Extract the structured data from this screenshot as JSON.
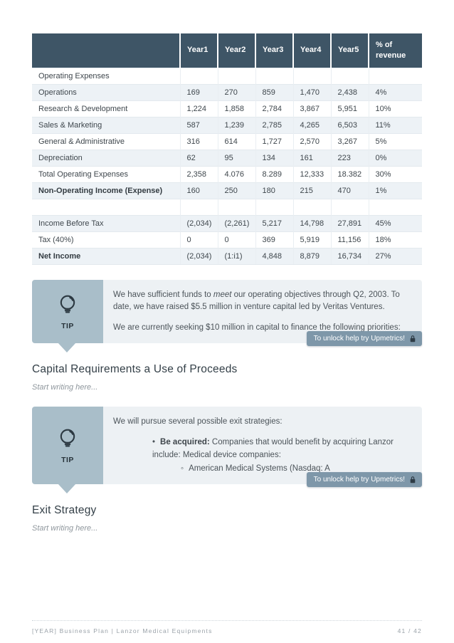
{
  "table": {
    "columns": [
      "",
      "Year1",
      "Year2",
      "Year3",
      "Year4",
      "Year5",
      "% of revenue"
    ],
    "rows": [
      {
        "label": "Operating Expenses",
        "bold": false,
        "values": [
          "",
          "",
          "",
          "",
          "",
          ""
        ]
      },
      {
        "label": "Operations",
        "bold": false,
        "values": [
          "169",
          "270",
          "859",
          "1,470",
          "2,438",
          "4%"
        ]
      },
      {
        "label": "Research & Development",
        "bold": false,
        "values": [
          "1,224",
          "1,858",
          "2,784",
          "3,867",
          "5,951",
          "10%"
        ]
      },
      {
        "label": "Sales & Marketing",
        "bold": false,
        "values": [
          "587",
          "1,239",
          "2,785",
          "4,265",
          "6,503",
          "11%"
        ]
      },
      {
        "label": "General & Administrative",
        "bold": false,
        "values": [
          "316",
          "614",
          "1,727",
          "2,570",
          "3,267",
          "5%"
        ]
      },
      {
        "label": "Depreciation",
        "bold": false,
        "values": [
          "62",
          "95",
          "134",
          "161",
          "223",
          "0%"
        ]
      },
      {
        "label": "Total Operating Expenses",
        "bold": false,
        "values": [
          "2,358",
          "4.076",
          "8.289",
          "12,333",
          "18.382",
          "30%"
        ]
      },
      {
        "label": "Non-Operating Income (Expense)",
        "bold": true,
        "values": [
          "160",
          "250",
          "180",
          "215",
          "470",
          "1%"
        ]
      },
      {
        "label": "",
        "bold": false,
        "values": [
          "",
          "",
          "",
          "",
          "",
          ""
        ]
      },
      {
        "label": "Income Before Tax",
        "bold": false,
        "values": [
          "(2,034)",
          "(2,261)",
          "5,217",
          "14,798",
          "27,891",
          "45%"
        ]
      },
      {
        "label": "Tax (40%)",
        "bold": false,
        "values": [
          "0",
          "0",
          "369",
          "5,919",
          "11,156",
          "18%"
        ]
      },
      {
        "label": "Net Income",
        "bold": true,
        "values": [
          "(2,034)",
          "(1:i1)",
          "4,848",
          "8,879",
          "16,734",
          "27%"
        ]
      }
    ]
  },
  "tip1": {
    "label": "TIP",
    "p1_pre": "We have sufficient funds to ",
    "p1_italic": "meet",
    "p1_post": " our operating objectives through Q2, 2003. To date, we have raised $5.5 million in venture capital led by Veritas Ventures.",
    "p2": "We are currently seeking $10 million in capital to finance the following priorities:",
    "badge": "To unlock help try Upmetrics!"
  },
  "section1": {
    "title": "Capital Requirements a Use of Proceeds",
    "placeholder": "Start writing here..."
  },
  "tip2": {
    "label": "TIP",
    "intro": "We will pursue several possible exit strategies:",
    "bullet_bold": "Be acquired:",
    "bullet_rest": " Companies that would benefit by acquiring Lanzor include: Medical device companies:",
    "sub_bullet": "American Medical Systems (Nasdaq: A",
    "badge": "To unlock help try Upmetrics!"
  },
  "section2": {
    "title": "Exit Strategy",
    "placeholder": "Start writing here..."
  },
  "footer": {
    "left": "[YEAR] Business Plan | Lanzor Medical Equipments",
    "right": "41 / 42"
  },
  "colors": {
    "table_header_bg": "#3e5566",
    "row_alt_bg": "#edf2f6",
    "tip_panel_bg": "#a9bec9",
    "tip_body_bg": "#edf1f4",
    "badge_bg": "#7e97a9",
    "heading_text": "#333f47",
    "footer_text": "#9aa2a9"
  }
}
